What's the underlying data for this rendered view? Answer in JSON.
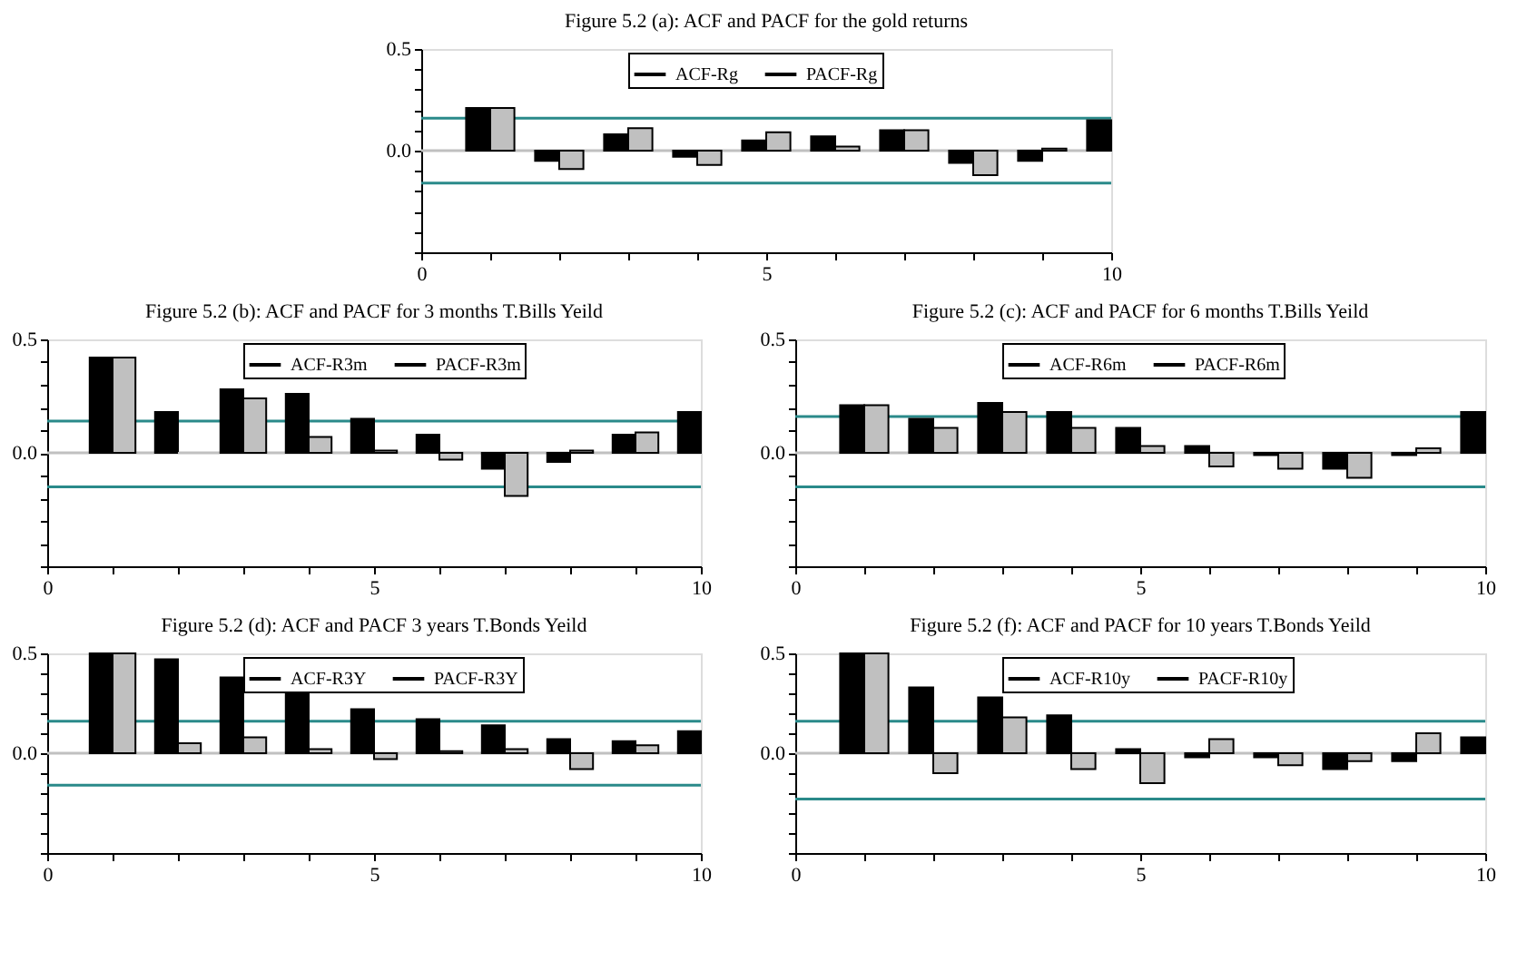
{
  "chart_data": [
    {
      "type": "bar",
      "title": "Figure 5.2 (a):  ACF and PACF for the gold returns",
      "legend": "top",
      "series": [
        {
          "name": "ACF-Rg",
          "color": "#000000",
          "x": [
            1,
            2,
            3,
            4,
            5,
            6,
            7,
            8,
            9,
            10
          ],
          "values": [
            0.21,
            -0.05,
            0.08,
            -0.03,
            0.05,
            0.07,
            0.1,
            -0.06,
            -0.05,
            0.15
          ]
        },
        {
          "name": "PACF-Rg",
          "color": "#c0c0c0",
          "x": [
            1,
            2,
            3,
            4,
            5,
            6,
            7,
            8,
            9
          ],
          "values": [
            0.21,
            -0.09,
            0.11,
            -0.07,
            0.09,
            0.02,
            0.1,
            -0.12,
            0.01
          ]
        }
      ],
      "xlim": [
        0,
        10
      ],
      "ylim": [
        -0.5,
        0.5
      ],
      "xticks": [
        0,
        {
          "value": 1,
          "label": null
        },
        {
          "value": 2,
          "label": null
        },
        {
          "value": 3,
          "label": null
        },
        {
          "value": 4,
          "label": null
        },
        5,
        {
          "value": 6,
          "label": null
        },
        {
          "value": 7,
          "label": null
        },
        {
          "value": 8,
          "label": null
        },
        {
          "value": 9,
          "label": null
        },
        10
      ],
      "yticks": [
        {
          "value": -0.5,
          "label": null
        },
        {
          "value": -0.4,
          "label": null
        },
        {
          "value": -0.3,
          "label": null
        },
        {
          "value": -0.2,
          "label": null
        },
        {
          "value": -0.1,
          "label": null
        },
        {
          "value": 0,
          "label": "0.0"
        },
        {
          "value": 0.1,
          "label": null
        },
        {
          "value": 0.2,
          "label": null
        },
        {
          "value": 0.3,
          "label": null
        },
        {
          "value": 0.4,
          "label": null
        },
        {
          "value": 0.5,
          "label": "0.5"
        }
      ],
      "ref_lines": [
        {
          "axis": "y",
          "value": 0.16,
          "color": "#2a8a8a"
        },
        {
          "axis": "y",
          "value": -0.16,
          "color": "#2a8a8a"
        },
        {
          "axis": "y",
          "value": 0,
          "color": "#c0c0c0"
        }
      ]
    },
    {
      "type": "bar",
      "title": "Figure 5.2 (b): ACF and PACF for 3 months T.Bills Yeild",
      "legend": "top",
      "series": [
        {
          "name": "ACF-R3m",
          "color": "#000000",
          "x": [
            1,
            2,
            3,
            4,
            5,
            6,
            7,
            8,
            9,
            10
          ],
          "values": [
            0.42,
            0.18,
            0.28,
            0.26,
            0.15,
            0.08,
            -0.07,
            -0.04,
            0.08,
            0.18
          ]
        },
        {
          "name": "PACF-R3m",
          "color": "#c0c0c0",
          "x": [
            1,
            2,
            3,
            4,
            5,
            6,
            7,
            8,
            9
          ],
          "values": [
            0.42,
            0.0,
            0.24,
            0.07,
            0.01,
            -0.03,
            -0.19,
            0.01,
            0.09
          ]
        }
      ],
      "xlim": [
        0,
        10
      ],
      "ylim": [
        -0.5,
        0.5
      ],
      "xticks": [
        0,
        {
          "value": 1,
          "label": null
        },
        {
          "value": 2,
          "label": null
        },
        {
          "value": 3,
          "label": null
        },
        {
          "value": 4,
          "label": null
        },
        5,
        {
          "value": 6,
          "label": null
        },
        {
          "value": 7,
          "label": null
        },
        {
          "value": 8,
          "label": null
        },
        {
          "value": 9,
          "label": null
        },
        10
      ],
      "yticks": [
        {
          "value": -0.5,
          "label": null
        },
        {
          "value": -0.4,
          "label": null
        },
        {
          "value": -0.3,
          "label": null
        },
        {
          "value": -0.2,
          "label": null
        },
        {
          "value": -0.1,
          "label": null
        },
        {
          "value": 0,
          "label": "0.0"
        },
        {
          "value": 0.1,
          "label": null
        },
        {
          "value": 0.2,
          "label": null
        },
        {
          "value": 0.3,
          "label": null
        },
        {
          "value": 0.4,
          "label": null
        },
        {
          "value": 0.5,
          "label": "0.5"
        }
      ],
      "ref_lines": [
        {
          "axis": "y",
          "value": 0.14,
          "color": "#2a8a8a"
        },
        {
          "axis": "y",
          "value": -0.15,
          "color": "#2a8a8a"
        },
        {
          "axis": "y",
          "value": 0,
          "color": "#c0c0c0"
        }
      ]
    },
    {
      "type": "bar",
      "title": "Figure 5.2 (c):  ACF and PACF for 6 months T.Bills Yeild",
      "legend": "top",
      "series": [
        {
          "name": "ACF-R6m",
          "color": "#000000",
          "x": [
            1,
            2,
            3,
            4,
            5,
            6,
            7,
            8,
            9,
            10
          ],
          "values": [
            0.21,
            0.15,
            0.22,
            0.18,
            0.11,
            0.03,
            -0.01,
            -0.07,
            -0.01,
            0.18
          ]
        },
        {
          "name": "PACF-R6m",
          "color": "#c0c0c0",
          "x": [
            1,
            2,
            3,
            4,
            5,
            6,
            7,
            8,
            9
          ],
          "values": [
            0.21,
            0.11,
            0.18,
            0.11,
            0.03,
            -0.06,
            -0.07,
            -0.11,
            0.02
          ]
        }
      ],
      "xlim": [
        0,
        10
      ],
      "ylim": [
        -0.5,
        0.5
      ],
      "xticks": [
        0,
        {
          "value": 1,
          "label": null
        },
        {
          "value": 2,
          "label": null
        },
        {
          "value": 3,
          "label": null
        },
        {
          "value": 4,
          "label": null
        },
        5,
        {
          "value": 6,
          "label": null
        },
        {
          "value": 7,
          "label": null
        },
        {
          "value": 8,
          "label": null
        },
        {
          "value": 9,
          "label": null
        },
        10
      ],
      "yticks": [
        {
          "value": -0.5,
          "label": null
        },
        {
          "value": -0.4,
          "label": null
        },
        {
          "value": -0.3,
          "label": null
        },
        {
          "value": -0.2,
          "label": null
        },
        {
          "value": -0.1,
          "label": null
        },
        {
          "value": 0,
          "label": "0.0"
        },
        {
          "value": 0.1,
          "label": null
        },
        {
          "value": 0.2,
          "label": null
        },
        {
          "value": 0.3,
          "label": null
        },
        {
          "value": 0.4,
          "label": null
        },
        {
          "value": 0.5,
          "label": "0.5"
        }
      ],
      "ref_lines": [
        {
          "axis": "y",
          "value": 0.16,
          "color": "#2a8a8a"
        },
        {
          "axis": "y",
          "value": -0.15,
          "color": "#2a8a8a"
        },
        {
          "axis": "y",
          "value": 0,
          "color": "#c0c0c0"
        }
      ]
    },
    {
      "type": "bar",
      "title": "Figure 5.2 (d): ACF and PACF 3 years T.Bonds Yeild",
      "legend": "top",
      "series": [
        {
          "name": "ACF-R3Y",
          "color": "#000000",
          "x": [
            1,
            2,
            3,
            4,
            5,
            6,
            7,
            8,
            9,
            10
          ],
          "values": [
            0.5,
            0.47,
            0.38,
            0.3,
            0.22,
            0.17,
            0.14,
            0.07,
            0.06,
            0.11
          ]
        },
        {
          "name": "PACF-R3Y",
          "color": "#c0c0c0",
          "x": [
            1,
            2,
            3,
            4,
            5,
            6,
            7,
            8,
            9
          ],
          "values": [
            0.5,
            0.05,
            0.08,
            0.02,
            -0.03,
            0.01,
            0.02,
            -0.08,
            0.04
          ]
        }
      ],
      "xlim": [
        0,
        10
      ],
      "ylim": [
        -0.5,
        0.5
      ],
      "xticks": [
        0,
        {
          "value": 1,
          "label": null
        },
        {
          "value": 2,
          "label": null
        },
        {
          "value": 3,
          "label": null
        },
        {
          "value": 4,
          "label": null
        },
        5,
        {
          "value": 6,
          "label": null
        },
        {
          "value": 7,
          "label": null
        },
        {
          "value": 8,
          "label": null
        },
        {
          "value": 9,
          "label": null
        },
        10
      ],
      "yticks": [
        {
          "value": -0.5,
          "label": null
        },
        {
          "value": -0.4,
          "label": null
        },
        {
          "value": -0.3,
          "label": null
        },
        {
          "value": -0.2,
          "label": null
        },
        {
          "value": -0.1,
          "label": null
        },
        {
          "value": 0,
          "label": "0.0"
        },
        {
          "value": 0.1,
          "label": null
        },
        {
          "value": 0.2,
          "label": null
        },
        {
          "value": 0.3,
          "label": null
        },
        {
          "value": 0.4,
          "label": null
        },
        {
          "value": 0.5,
          "label": "0.5"
        }
      ],
      "ref_lines": [
        {
          "axis": "y",
          "value": 0.16,
          "color": "#2a8a8a"
        },
        {
          "axis": "y",
          "value": -0.16,
          "color": "#2a8a8a"
        },
        {
          "axis": "y",
          "value": 0,
          "color": "#c0c0c0"
        }
      ]
    },
    {
      "type": "bar",
      "title": "Figure 5.2 (f): ACF and PACF for 10 years T.Bonds Yeild",
      "legend": "top",
      "series": [
        {
          "name": "ACF-R10y",
          "color": "#000000",
          "x": [
            1,
            2,
            3,
            4,
            5,
            6,
            7,
            8,
            9,
            10
          ],
          "values": [
            0.5,
            0.33,
            0.28,
            0.19,
            0.02,
            -0.02,
            -0.02,
            -0.08,
            -0.04,
            0.08
          ]
        },
        {
          "name": "PACF-R10y",
          "color": "#c0c0c0",
          "x": [
            1,
            2,
            3,
            4,
            5,
            6,
            7,
            8,
            9
          ],
          "values": [
            0.5,
            -0.1,
            0.18,
            -0.08,
            -0.15,
            0.07,
            -0.06,
            -0.04,
            0.1
          ]
        }
      ],
      "xlim": [
        0,
        10
      ],
      "ylim": [
        -0.5,
        0.5
      ],
      "xticks": [
        0,
        {
          "value": 1,
          "label": null
        },
        {
          "value": 2,
          "label": null
        },
        {
          "value": 3,
          "label": null
        },
        {
          "value": 4,
          "label": null
        },
        5,
        {
          "value": 6,
          "label": null
        },
        {
          "value": 7,
          "label": null
        },
        {
          "value": 8,
          "label": null
        },
        {
          "value": 9,
          "label": null
        },
        10
      ],
      "yticks": [
        {
          "value": -0.5,
          "label": null
        },
        {
          "value": -0.4,
          "label": null
        },
        {
          "value": -0.3,
          "label": null
        },
        {
          "value": -0.2,
          "label": null
        },
        {
          "value": -0.1,
          "label": null
        },
        {
          "value": 0,
          "label": "0.0"
        },
        {
          "value": 0.1,
          "label": null
        },
        {
          "value": 0.2,
          "label": null
        },
        {
          "value": 0.3,
          "label": null
        },
        {
          "value": 0.4,
          "label": null
        },
        {
          "value": 0.5,
          "label": "0.5"
        }
      ],
      "ref_lines": [
        {
          "axis": "y",
          "value": 0.16,
          "color": "#2a8a8a"
        },
        {
          "axis": "y",
          "value": -0.23,
          "color": "#2a8a8a"
        },
        {
          "axis": "y",
          "value": 0,
          "color": "#c0c0c0"
        }
      ]
    }
  ]
}
